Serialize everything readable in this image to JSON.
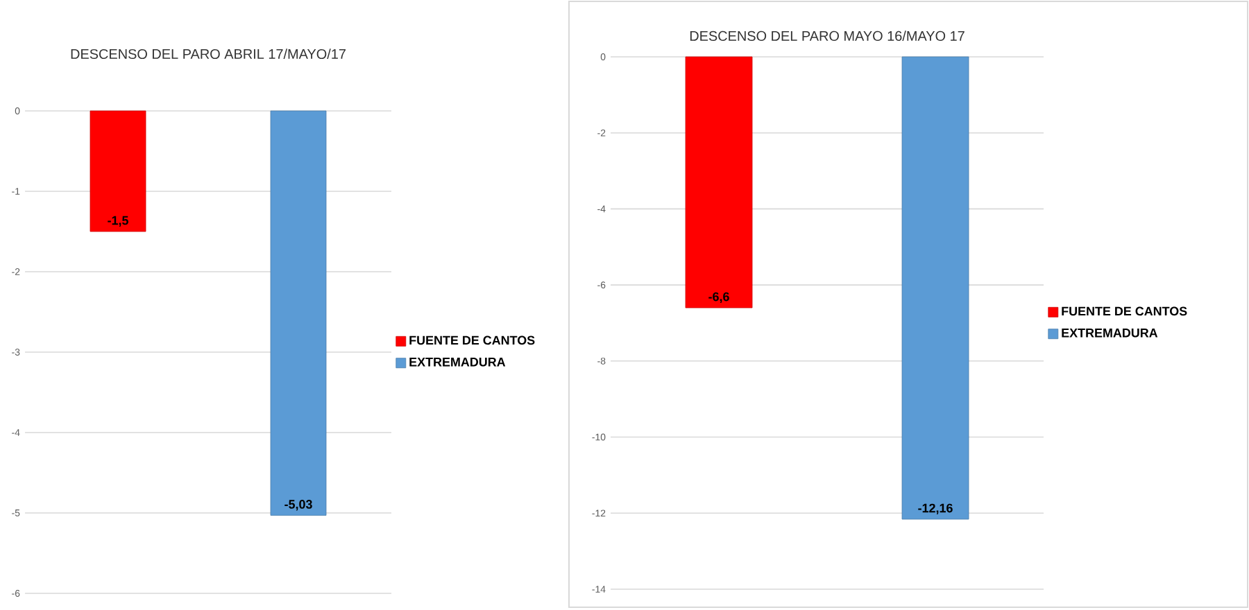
{
  "chart_data": [
    {
      "type": "bar",
      "title": "DESCENSO DEL PARO ABRIL 17/MAYO/17",
      "categories": [
        null
      ],
      "ylim": [
        -6,
        0
      ],
      "yticks": [
        -6,
        -5,
        -4,
        -3,
        -2,
        -1,
        0
      ],
      "grid": "y",
      "legend": "right",
      "series": [
        {
          "name": "FUENTE DE CANTOS",
          "color": "#ff0000",
          "values": [
            -1.5
          ],
          "value_labels": [
            "-1,5"
          ]
        },
        {
          "name": "EXTREMADURA",
          "color": "#5b9bd5",
          "values": [
            -5.03
          ],
          "value_labels": [
            "-5,03"
          ]
        }
      ]
    },
    {
      "type": "bar",
      "title": "DESCENSO DEL PARO MAYO 16/MAYO 17",
      "categories": [
        null
      ],
      "ylim": [
        -14,
        0
      ],
      "yticks": [
        -14,
        -12,
        -10,
        -8,
        -6,
        -4,
        -2,
        0
      ],
      "grid": "y",
      "legend": "right",
      "series": [
        {
          "name": "FUENTE DE CANTOS",
          "color": "#ff0000",
          "values": [
            -6.6
          ],
          "value_labels": [
            "-6,6"
          ]
        },
        {
          "name": "EXTREMADURA",
          "color": "#5b9bd5",
          "values": [
            -12.16
          ],
          "value_labels": [
            "-12,16"
          ]
        }
      ]
    }
  ]
}
